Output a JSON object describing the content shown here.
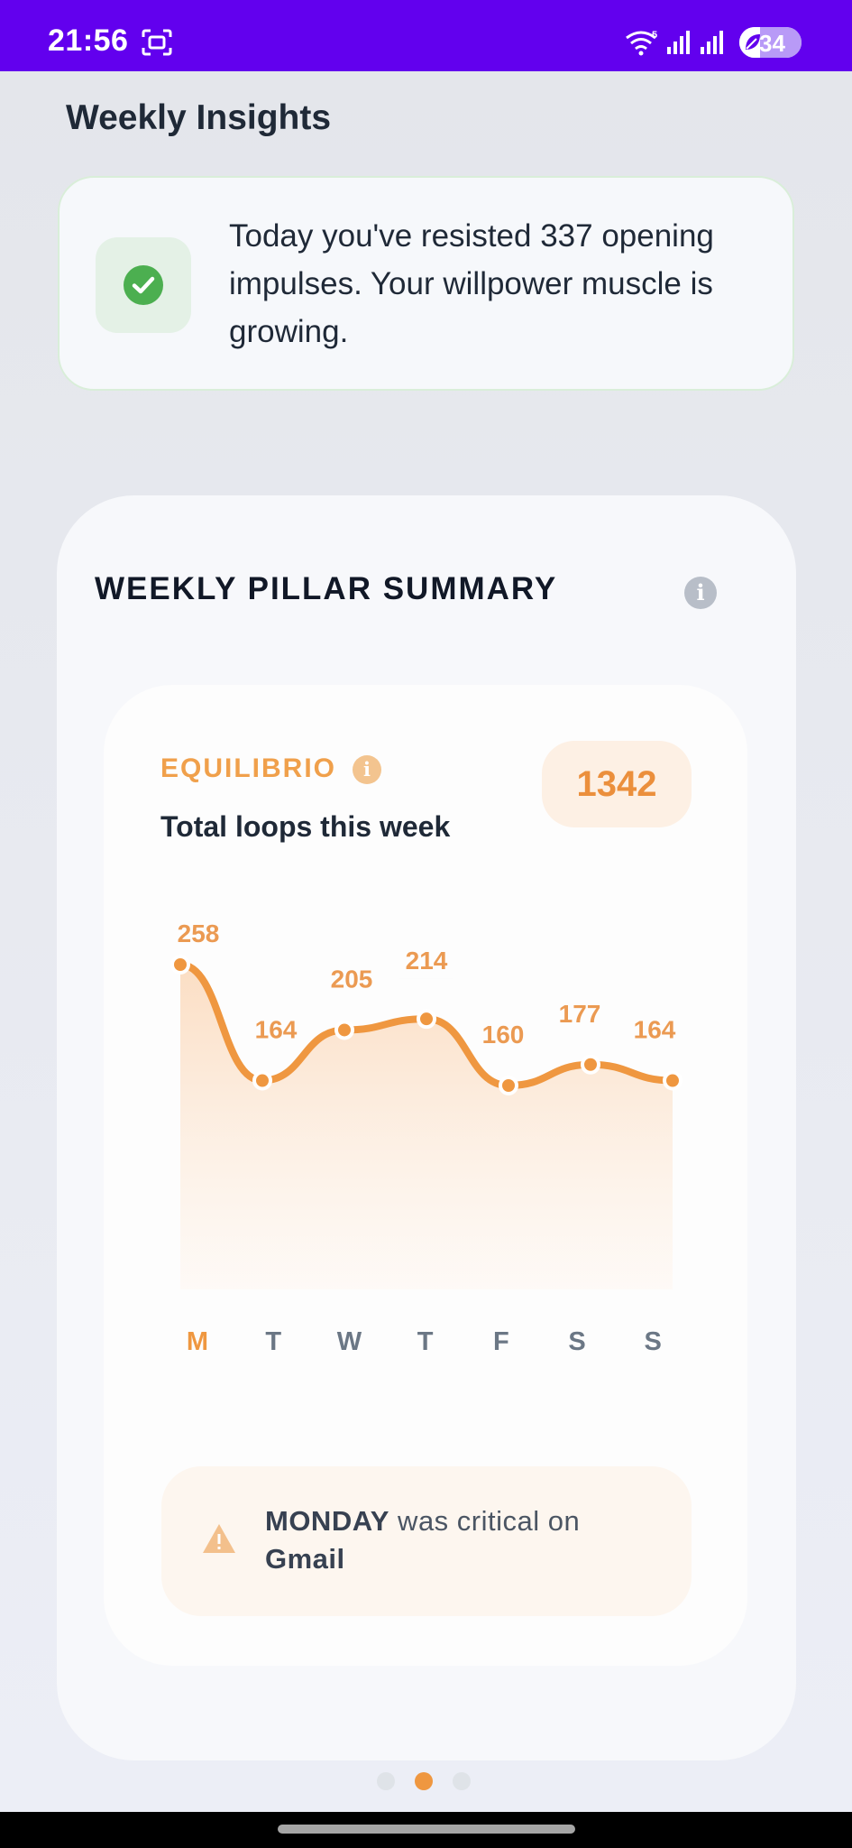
{
  "status_bar": {
    "time": "21:56",
    "battery_level": "34",
    "battery_fraction": 0.34,
    "color": "#6200ee"
  },
  "page": {
    "title": "Weekly Insights"
  },
  "insight": {
    "text": "Today you've resisted 337 opening impulses. Your willpower muscle is growing.",
    "icon": "check-circle-icon",
    "accent": "#4caf50"
  },
  "pillar_summary": {
    "title": "WEEKLY PILLAR SUMMARY",
    "info_glyph": "i",
    "pillar_name": "EQUILIBRIO",
    "total_label": "Total loops this week",
    "total_value": "1342",
    "accent": "#ef9740",
    "alert": {
      "day": "MONDAY",
      "middle": " was critical on ",
      "app": "Gmail",
      "icon": "warning-icon"
    },
    "pager": {
      "count": 3,
      "active_index": 1
    }
  },
  "chart_data": {
    "type": "area",
    "categories": [
      "M",
      "T",
      "W",
      "T",
      "F",
      "S",
      "S"
    ],
    "values": [
      258,
      164,
      205,
      214,
      160,
      177,
      164
    ],
    "data_labels": [
      "258",
      "164",
      "205",
      "214",
      "160",
      "177",
      "164"
    ],
    "highlight_index": 0,
    "title": "",
    "xlabel": "",
    "ylabel": "",
    "grid": false,
    "line_color": "#ef9740",
    "fill_color_top": "#fbe0c8"
  }
}
